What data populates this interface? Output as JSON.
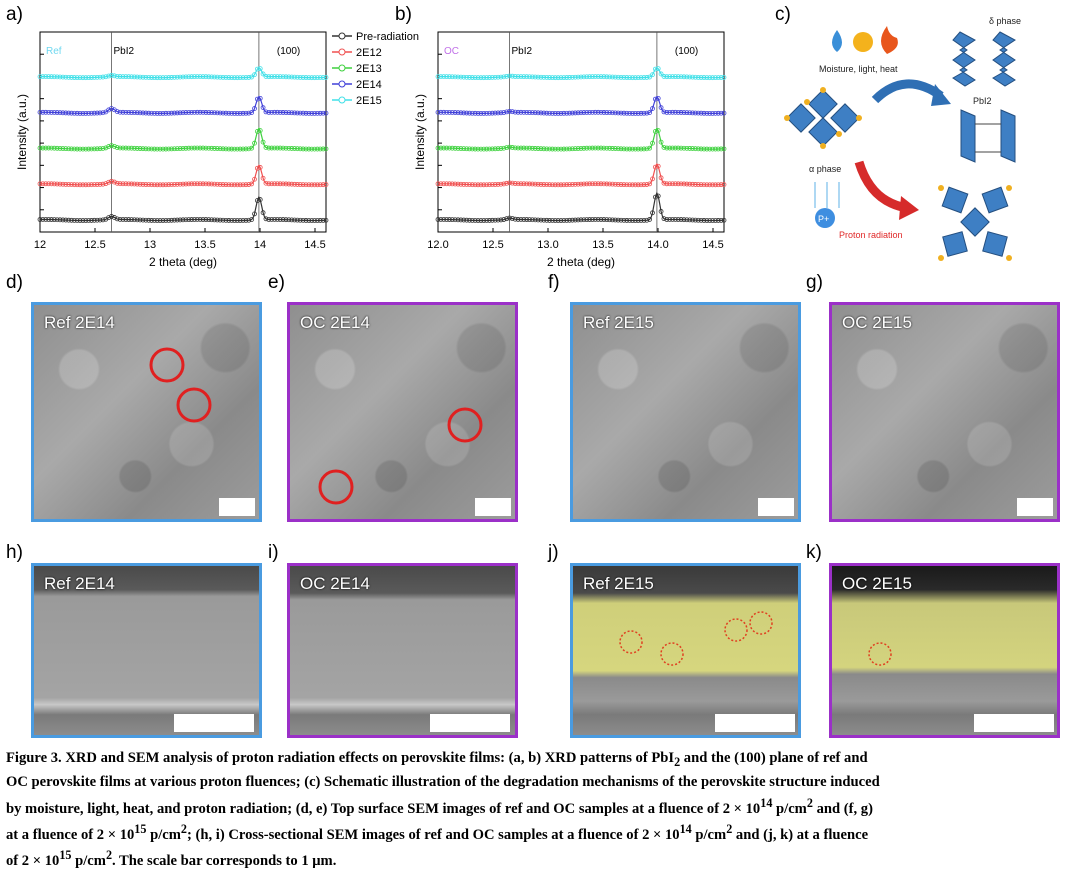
{
  "panel_letters": {
    "a": "a)",
    "b": "b)",
    "c": "c)",
    "d": "d)",
    "e": "e)",
    "f": "f)",
    "g": "g)",
    "h": "h)",
    "i": "i)",
    "j": "j)",
    "k": "k)"
  },
  "colors": {
    "ref_border": "#4a9be0",
    "oc_border": "#9b30c8",
    "highlight": "#ecec82",
    "marker": "#e02020"
  },
  "chart_data": [
    {
      "type": "line",
      "title": "",
      "inset_label": "Ref",
      "xlabel": "2 theta (deg)",
      "ylabel": "Intensity (a.u.)",
      "xlim": [
        12,
        14.6
      ],
      "xticks": [
        "12",
        "12.5",
        "13",
        "13.5",
        "14",
        "14.5"
      ],
      "xtick_values": [
        12,
        12.5,
        13,
        13.5,
        14,
        14.5
      ],
      "annotations": [
        {
          "text": "PbI2",
          "x": 12.65
        },
        {
          "text": "(100)",
          "x": 13.99
        }
      ],
      "legend_position": "top-right",
      "series": [
        {
          "name": "Pre-radiation",
          "color": "#333333",
          "offset": 0,
          "peak_pbi2": 0.12,
          "peak_100": 0.85
        },
        {
          "name": "2E12",
          "color": "#f05050",
          "offset": 1,
          "peak_pbi2": 0.1,
          "peak_100": 0.7
        },
        {
          "name": "2E13",
          "color": "#3ed13e",
          "offset": 2,
          "peak_pbi2": 0.1,
          "peak_100": 0.75
        },
        {
          "name": "2E14",
          "color": "#4040d8",
          "offset": 3,
          "peak_pbi2": 0.15,
          "peak_100": 0.6
        },
        {
          "name": "2E15",
          "color": "#40e0e8",
          "offset": 4,
          "peak_pbi2": 0.05,
          "peak_100": 0.35
        }
      ]
    },
    {
      "type": "line",
      "title": "",
      "inset_label": "OC",
      "xlabel": "2 theta (deg)",
      "ylabel": "Intensity (a.u.)",
      "xlim": [
        12,
        14.6
      ],
      "xticks": [
        "12.0",
        "12.5",
        "13.0",
        "13.5",
        "14.0",
        "14.5"
      ],
      "xtick_values": [
        12,
        12.5,
        13,
        13.5,
        14,
        14.5
      ],
      "annotations": [
        {
          "text": "PbI2",
          "x": 12.65
        },
        {
          "text": "(100)",
          "x": 13.99
        }
      ],
      "series": [
        {
          "name": "Pre-radiation",
          "color": "#333333",
          "offset": 0,
          "peak_pbi2": 0.06,
          "peak_100": 1.0
        },
        {
          "name": "2E12",
          "color": "#f05050",
          "offset": 1,
          "peak_pbi2": 0.04,
          "peak_100": 0.75
        },
        {
          "name": "2E13",
          "color": "#3ed13e",
          "offset": 2,
          "peak_pbi2": 0.04,
          "peak_100": 0.75
        },
        {
          "name": "2E14",
          "color": "#4040d8",
          "offset": 3,
          "peak_pbi2": 0.04,
          "peak_100": 0.6
        },
        {
          "name": "2E15",
          "color": "#40e0e8",
          "offset": 4,
          "peak_pbi2": 0.03,
          "peak_100": 0.35
        }
      ]
    }
  ],
  "schematic": {
    "conditions": "Moisture, light, heat",
    "delta_phase": "δ phase",
    "pbi2": "PbI2",
    "alpha_phase": "α phase",
    "proton_symbol": "P+",
    "proton_radiation": "Proton radiation"
  },
  "sem": {
    "d": "Ref 2E14",
    "e": "OC 2E14",
    "f": "Ref 2E15",
    "g": "OC 2E15",
    "h": "Ref 2E14",
    "i": "OC 2E14",
    "j": "Ref 2E15",
    "k": "OC 2E15"
  },
  "caption": {
    "lead": "Figure 3. XRD and SEM analysis of proton radiation effects on perovskite films: (a, b) XRD patterns of PbI",
    "l1a": " and the (100) plane of ref and",
    "line2": "OC perovskite films at various proton fluences; (c) Schematic illustration of the degradation mechanisms of the perovskite structure induced",
    "line3a": "by moisture, light, heat, and proton radiation; (d, e) Top surface SEM images of ref and OC samples at a fluence of 2 × 10",
    "line3b": " p/cm",
    "line3c": " and (f, g)",
    "line4a": "at a fluence of 2 × 10",
    "line4b": " p/cm",
    "line4c": "; (h, i) Cross-sectional SEM images of ref and OC samples at a fluence of 2 × 10",
    "line4d": " p/cm",
    "line4e": " and (j, k) at a fluence",
    "line5a": "of 2 × 10",
    "line5b": " p/cm",
    "line5c": ". The scale bar corresponds to 1 μm.",
    "sub2": "2",
    "sup2": "2",
    "exp14": "14",
    "exp15": "15"
  }
}
